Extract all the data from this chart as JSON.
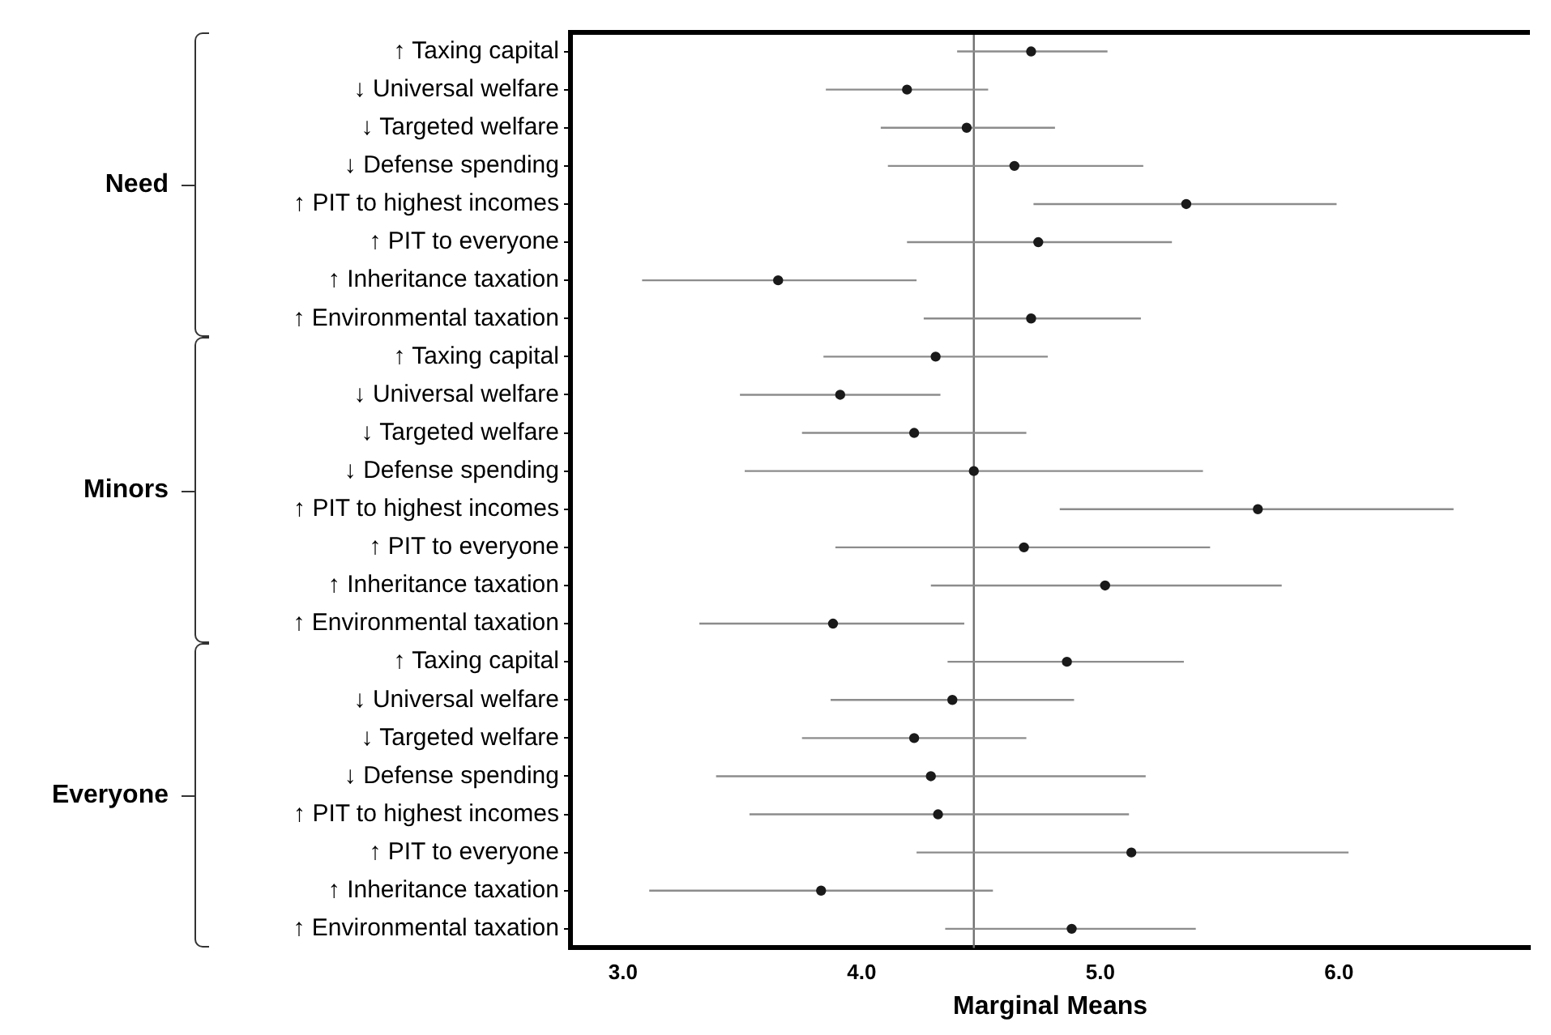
{
  "chart_data": {
    "type": "scatter",
    "xlabel": "Marginal Means",
    "categories": [
      "↑ Taxing capital",
      "↓ Universal welfare",
      "↓ Targeted welfare",
      "↓ Defense spending",
      "↑ PIT to highest incomes",
      "↑ PIT to everyone",
      "↑ Inheritance taxation",
      "↑ Environmental taxation",
      "↑ Taxing capital",
      "↓ Universal welfare",
      "↓ Targeted welfare",
      "↓ Defense spending",
      "↑ PIT to highest incomes",
      "↑ PIT to everyone",
      "↑ Inheritance taxation",
      "↑ Environmental taxation",
      "↑ Taxing capital",
      "↓ Universal welfare",
      "↓ Targeted welfare",
      "↓ Defense spending",
      "↑ PIT to highest incomes",
      "↑ PIT to everyone",
      "↑ Inheritance taxation",
      "↑ Environmental taxation"
    ],
    "values": [
      4.71,
      4.19,
      4.44,
      4.64,
      5.36,
      4.74,
      3.65,
      4.71,
      4.31,
      3.91,
      4.22,
      4.47,
      5.66,
      4.68,
      5.02,
      3.88,
      4.86,
      4.38,
      4.22,
      4.29,
      4.32,
      5.13,
      3.83,
      4.88
    ],
    "errors": [
      [
        4.4,
        5.03
      ],
      [
        3.85,
        4.53
      ],
      [
        4.08,
        4.81
      ],
      [
        4.11,
        5.18
      ],
      [
        4.72,
        5.99
      ],
      [
        4.19,
        5.3
      ],
      [
        3.08,
        4.23
      ],
      [
        4.26,
        5.17
      ],
      [
        3.84,
        4.78
      ],
      [
        3.49,
        4.33
      ],
      [
        3.75,
        4.69
      ],
      [
        3.51,
        5.43
      ],
      [
        4.83,
        6.48
      ],
      [
        3.89,
        5.46
      ],
      [
        4.29,
        5.76
      ],
      [
        3.32,
        4.43
      ],
      [
        4.36,
        5.35
      ],
      [
        3.87,
        4.89
      ],
      [
        3.75,
        4.69
      ],
      [
        3.39,
        5.19
      ],
      [
        3.53,
        5.12
      ],
      [
        4.23,
        6.04
      ],
      [
        3.11,
        4.55
      ],
      [
        4.35,
        5.4
      ]
    ],
    "color": "#1a1a1a",
    "marker": "circle",
    "orientation": "horizontal",
    "xlim": [
      2.78,
      6.8
    ],
    "xticks": [
      {
        "value": 3,
        "label": "3.0"
      },
      {
        "value": 4,
        "label": "4.0"
      },
      {
        "value": 5,
        "label": "5.0"
      },
      {
        "value": 6,
        "label": "6.0"
      }
    ],
    "ref_lines": [
      {
        "axis": "x",
        "value": 4.47,
        "color": "#707070"
      }
    ],
    "annotations": [
      "Need",
      "Minors",
      "Everyone"
    ],
    "grid": false,
    "legend": false
  }
}
